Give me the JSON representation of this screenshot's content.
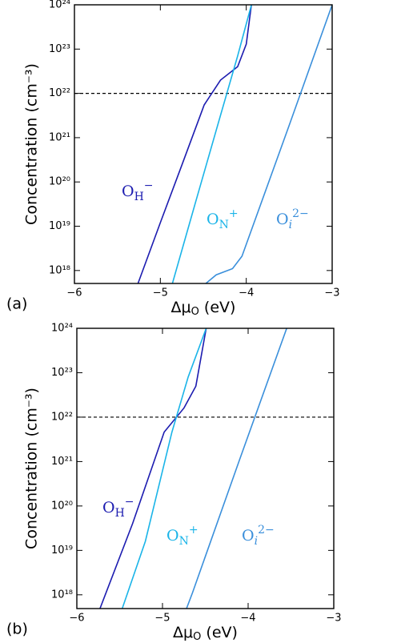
{
  "chart_data": [
    {
      "type": "line",
      "panel_label": "(a)",
      "ylabel": "Concentration (cm⁻³)",
      "xlabel": {
        "main": "Δμ",
        "sub": "O",
        "rest": " (eV)"
      },
      "log_y": true,
      "xlim": [
        -6,
        -3
      ],
      "ylim": [
        5.1e+17,
        1e+24
      ],
      "xticks": [
        {
          "value": -6,
          "label": "−6"
        },
        {
          "value": -5,
          "label": "−5"
        },
        {
          "value": -4,
          "label": "−4"
        },
        {
          "value": -3,
          "label": "−3"
        }
      ],
      "yticks": [
        {
          "value": 1e+18,
          "label": "10¹⁸"
        },
        {
          "value": 1e+19,
          "label": "10¹⁹"
        },
        {
          "value": 1e+20,
          "label": "10²⁰"
        },
        {
          "value": 1e+21,
          "label": "10²¹"
        },
        {
          "value": 1e+22,
          "label": "10²²"
        },
        {
          "value": 1e+23,
          "label": "10²³"
        },
        {
          "value": 1e+24,
          "label": "10²⁴"
        }
      ],
      "hline": 1e+22,
      "series": [
        {
          "name": {
            "base": "O",
            "sub": "H",
            "sup": "−"
          },
          "color": "#1c1cb0",
          "x": [
            -5.26,
            -5.0,
            -4.75,
            -4.49,
            -4.3,
            -4.1,
            -4.0,
            -3.94
          ],
          "values": [
            5.1e+17,
            1.2e+19,
            2.4e+20,
            5.5e+21,
            2e+22,
            4e+22,
            1.3e+23,
            1e+24
          ]
        },
        {
          "name": {
            "base": "O",
            "sub": "N",
            "sup": "+"
          },
          "color": "#1ab4e8",
          "x": [
            -4.86,
            -4.6,
            -4.3,
            -4.1,
            -3.94
          ],
          "values": [
            5.1e+17,
            3e+19,
            3.2e+21,
            7e+22,
            1e+24
          ]
        },
        {
          "name": {
            "base": "O",
            "sub": "i",
            "sup": "2−"
          },
          "color": "#3a8fdb",
          "x": [
            -4.47,
            -4.35,
            -4.16,
            -4.05,
            -3.5,
            -3.0
          ],
          "values": [
            5.1e+17,
            8e+17,
            1.1e+18,
            2.1e+18,
            1.9e+21,
            1e+24
          ]
        }
      ]
    },
    {
      "type": "line",
      "panel_label": "(b)",
      "ylabel": "Concentration (cm⁻³)",
      "xlabel": {
        "main": "Δμ",
        "sub": "O",
        "rest": " (eV)"
      },
      "log_y": true,
      "xlim": [
        -6,
        -3
      ],
      "ylim": [
        4.9e+17,
        1e+24
      ],
      "xticks": [
        {
          "value": -6,
          "label": "−6"
        },
        {
          "value": -5,
          "label": "−5"
        },
        {
          "value": -4,
          "label": "−4"
        },
        {
          "value": -3,
          "label": "−3"
        }
      ],
      "yticks": [
        {
          "value": 1e+18,
          "label": "10¹⁸"
        },
        {
          "value": 1e+19,
          "label": "10¹⁹"
        },
        {
          "value": 1e+20,
          "label": "10²⁰"
        },
        {
          "value": 1e+21,
          "label": "10²¹"
        },
        {
          "value": 1e+22,
          "label": "10²²"
        },
        {
          "value": 1e+23,
          "label": "10²³"
        },
        {
          "value": 1e+24,
          "label": "10²⁴"
        }
      ],
      "hline": 1e+22,
      "series": [
        {
          "name": {
            "base": "O",
            "sub": "H",
            "sup": "−"
          },
          "color": "#1c1cb0",
          "x": [
            -5.73,
            -5.35,
            -4.98,
            -4.75,
            -4.61,
            -4.49
          ],
          "values": [
            4.9e+17,
            4e+19,
            4.6e+21,
            1.6e+22,
            5e+22,
            1e+24
          ]
        },
        {
          "name": {
            "base": "O",
            "sub": "N",
            "sup": "+"
          },
          "color": "#1ab4e8",
          "x": [
            -5.47,
            -5.2,
            -4.89,
            -4.7,
            -4.49
          ],
          "values": [
            4.9e+17,
            1.6e+19,
            4.6e+21,
            8e+22,
            1e+24
          ]
        },
        {
          "name": {
            "base": "O",
            "sub": "i",
            "sup": "2−"
          },
          "color": "#3a8fdb",
          "x": [
            -4.72,
            -4.65,
            -4.1,
            -3.55
          ],
          "values": [
            4.9e+17,
            1.1e+18,
            1.1e+21,
            1e+24
          ]
        }
      ]
    }
  ]
}
